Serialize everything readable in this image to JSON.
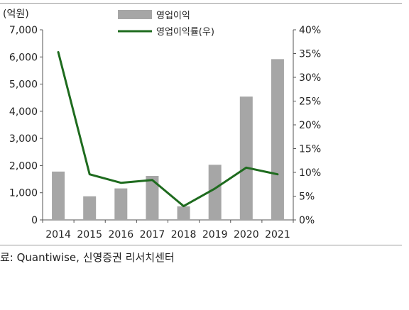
{
  "chart_data": {
    "type": "bar+line",
    "categories": [
      "2014",
      "2015",
      "2016",
      "2017",
      "2018",
      "2019",
      "2020",
      "2021"
    ],
    "series": [
      {
        "name": "영업이익",
        "type": "bar",
        "axis": "left",
        "color": "#a6a6a6",
        "values": [
          1780,
          870,
          1160,
          1620,
          500,
          2030,
          4540,
          5920
        ]
      },
      {
        "name": "영업이익률(우)",
        "type": "line",
        "axis": "right",
        "color": "#1e6b1e",
        "values": [
          35.3,
          9.6,
          7.8,
          8.4,
          2.9,
          6.6,
          11.0,
          9.6
        ]
      }
    ],
    "y_left": {
      "unit_label": "(억원)",
      "ylim": [
        0,
        7000
      ],
      "ticks": [
        0,
        1000,
        2000,
        3000,
        4000,
        5000,
        6000,
        7000
      ],
      "tick_labels": [
        "0",
        "1,000",
        "2,000",
        "3,000",
        "4,000",
        "5,000",
        "6,000",
        "7,000"
      ]
    },
    "y_right": {
      "ylim": [
        0,
        40
      ],
      "ticks": [
        0,
        5,
        10,
        15,
        20,
        25,
        30,
        35,
        40
      ],
      "tick_labels": [
        "0%",
        "5%",
        "10%",
        "15%",
        "20%",
        "25%",
        "30%",
        "35%",
        "40%"
      ]
    },
    "legend_position": "top-center",
    "grid": false
  },
  "source": "료: Quantiwise, 신영증권 리서치센터"
}
